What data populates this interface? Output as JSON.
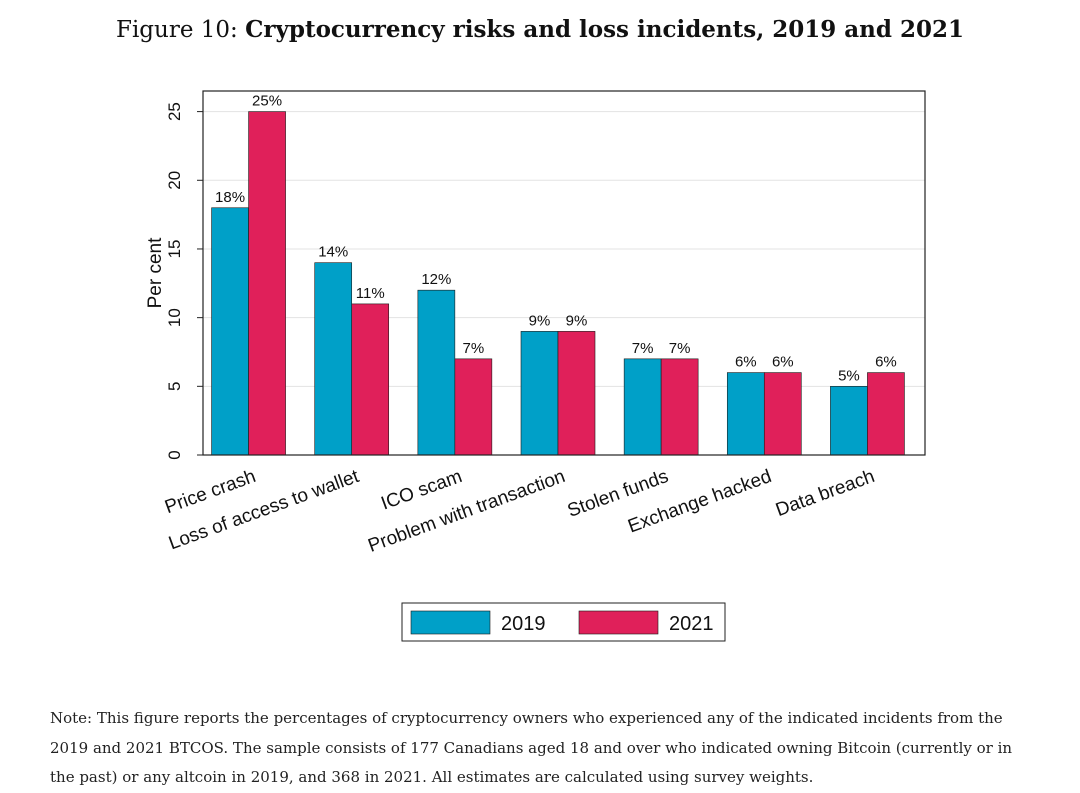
{
  "figure": {
    "label": "Figure 10:",
    "title": "Cryptocurrency risks and loss incidents, 2019 and 2021"
  },
  "note": "Note: This figure reports the percentages of cryptocurrency owners who experienced any of the indicated incidents from the 2019 and 2021 BTCOS. The sample consists of 177 Canadians aged 18 and over who indicated owning Bitcoin (currently or in the past) or any altcoin in 2019, and 368 in 2021. All estimates are calculated using survey weights.",
  "chart_data": {
    "type": "bar",
    "title": "",
    "xlabel": "",
    "ylabel": "Per cent",
    "ylim": [
      0,
      26.5
    ],
    "yticks": [
      0,
      5,
      10,
      15,
      20,
      25
    ],
    "grid": true,
    "legend": "bottom",
    "categories": [
      "Price crash",
      "Loss of access to wallet",
      "ICO scam",
      "Problem with transaction",
      "Stolen funds",
      "Exchange hacked",
      "Data breach"
    ],
    "series": [
      {
        "name": "2019",
        "color": "#00a0c8",
        "values": [
          18,
          14,
          12,
          9,
          7,
          6,
          5
        ]
      },
      {
        "name": "2021",
        "color": "#e0205a",
        "values": [
          25,
          11,
          7,
          9,
          7,
          6,
          6
        ]
      }
    ],
    "value_suffix": "%"
  }
}
